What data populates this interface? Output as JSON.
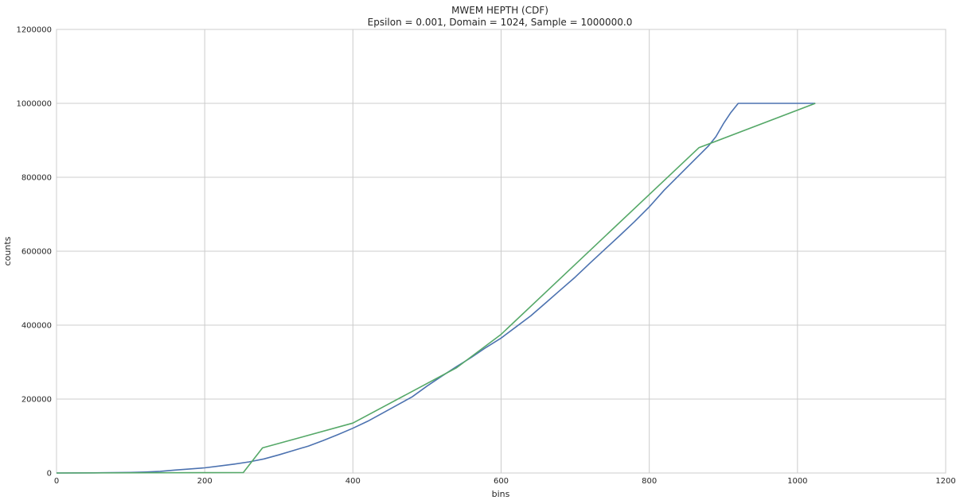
{
  "chart_data": {
    "type": "line",
    "title": "MWEM HEPTH (CDF)",
    "subtitle": "Epsilon = 0.001, Domain = 1024, Sample = 1000000.0",
    "xlabel": "bins",
    "ylabel": "counts",
    "xlim": [
      0,
      1200
    ],
    "ylim": [
      0,
      1200000
    ],
    "xticks": [
      0,
      200,
      400,
      600,
      800,
      1000,
      1200
    ],
    "yticks": [
      0,
      200000,
      400000,
      600000,
      800000,
      1000000,
      1200000
    ],
    "grid": true,
    "series": [
      {
        "color": "#4c72b0",
        "x": [
          0,
          50,
          100,
          120,
          140,
          160,
          180,
          200,
          220,
          240,
          260,
          280,
          300,
          320,
          340,
          360,
          380,
          400,
          420,
          440,
          460,
          480,
          500,
          520,
          540,
          560,
          580,
          600,
          620,
          640,
          660,
          680,
          700,
          720,
          740,
          760,
          780,
          800,
          820,
          840,
          860,
          870,
          880,
          890,
          900,
          910,
          920,
          950,
          1000,
          1024
        ],
        "y": [
          0,
          500,
          1500,
          2500,
          4500,
          8000,
          11000,
          14000,
          19000,
          24000,
          30000,
          38000,
          49000,
          61000,
          73000,
          88000,
          104000,
          121000,
          140000,
          162000,
          184000,
          206000,
          235000,
          262000,
          288000,
          313000,
          340000,
          365000,
          395000,
          425000,
          460000,
          495000,
          530000,
          568000,
          605000,
          642000,
          680000,
          720000,
          765000,
          805000,
          845000,
          865000,
          885000,
          910000,
          945000,
          975000,
          1000000,
          1000000,
          1000000,
          1000000
        ]
      },
      {
        "color": "#55a868",
        "x": [
          0,
          252,
          278,
          400,
          540,
          600,
          867,
          1024
        ],
        "y": [
          0,
          1000,
          68000,
          135000,
          285000,
          375000,
          880000,
          1000000
        ]
      }
    ]
  }
}
